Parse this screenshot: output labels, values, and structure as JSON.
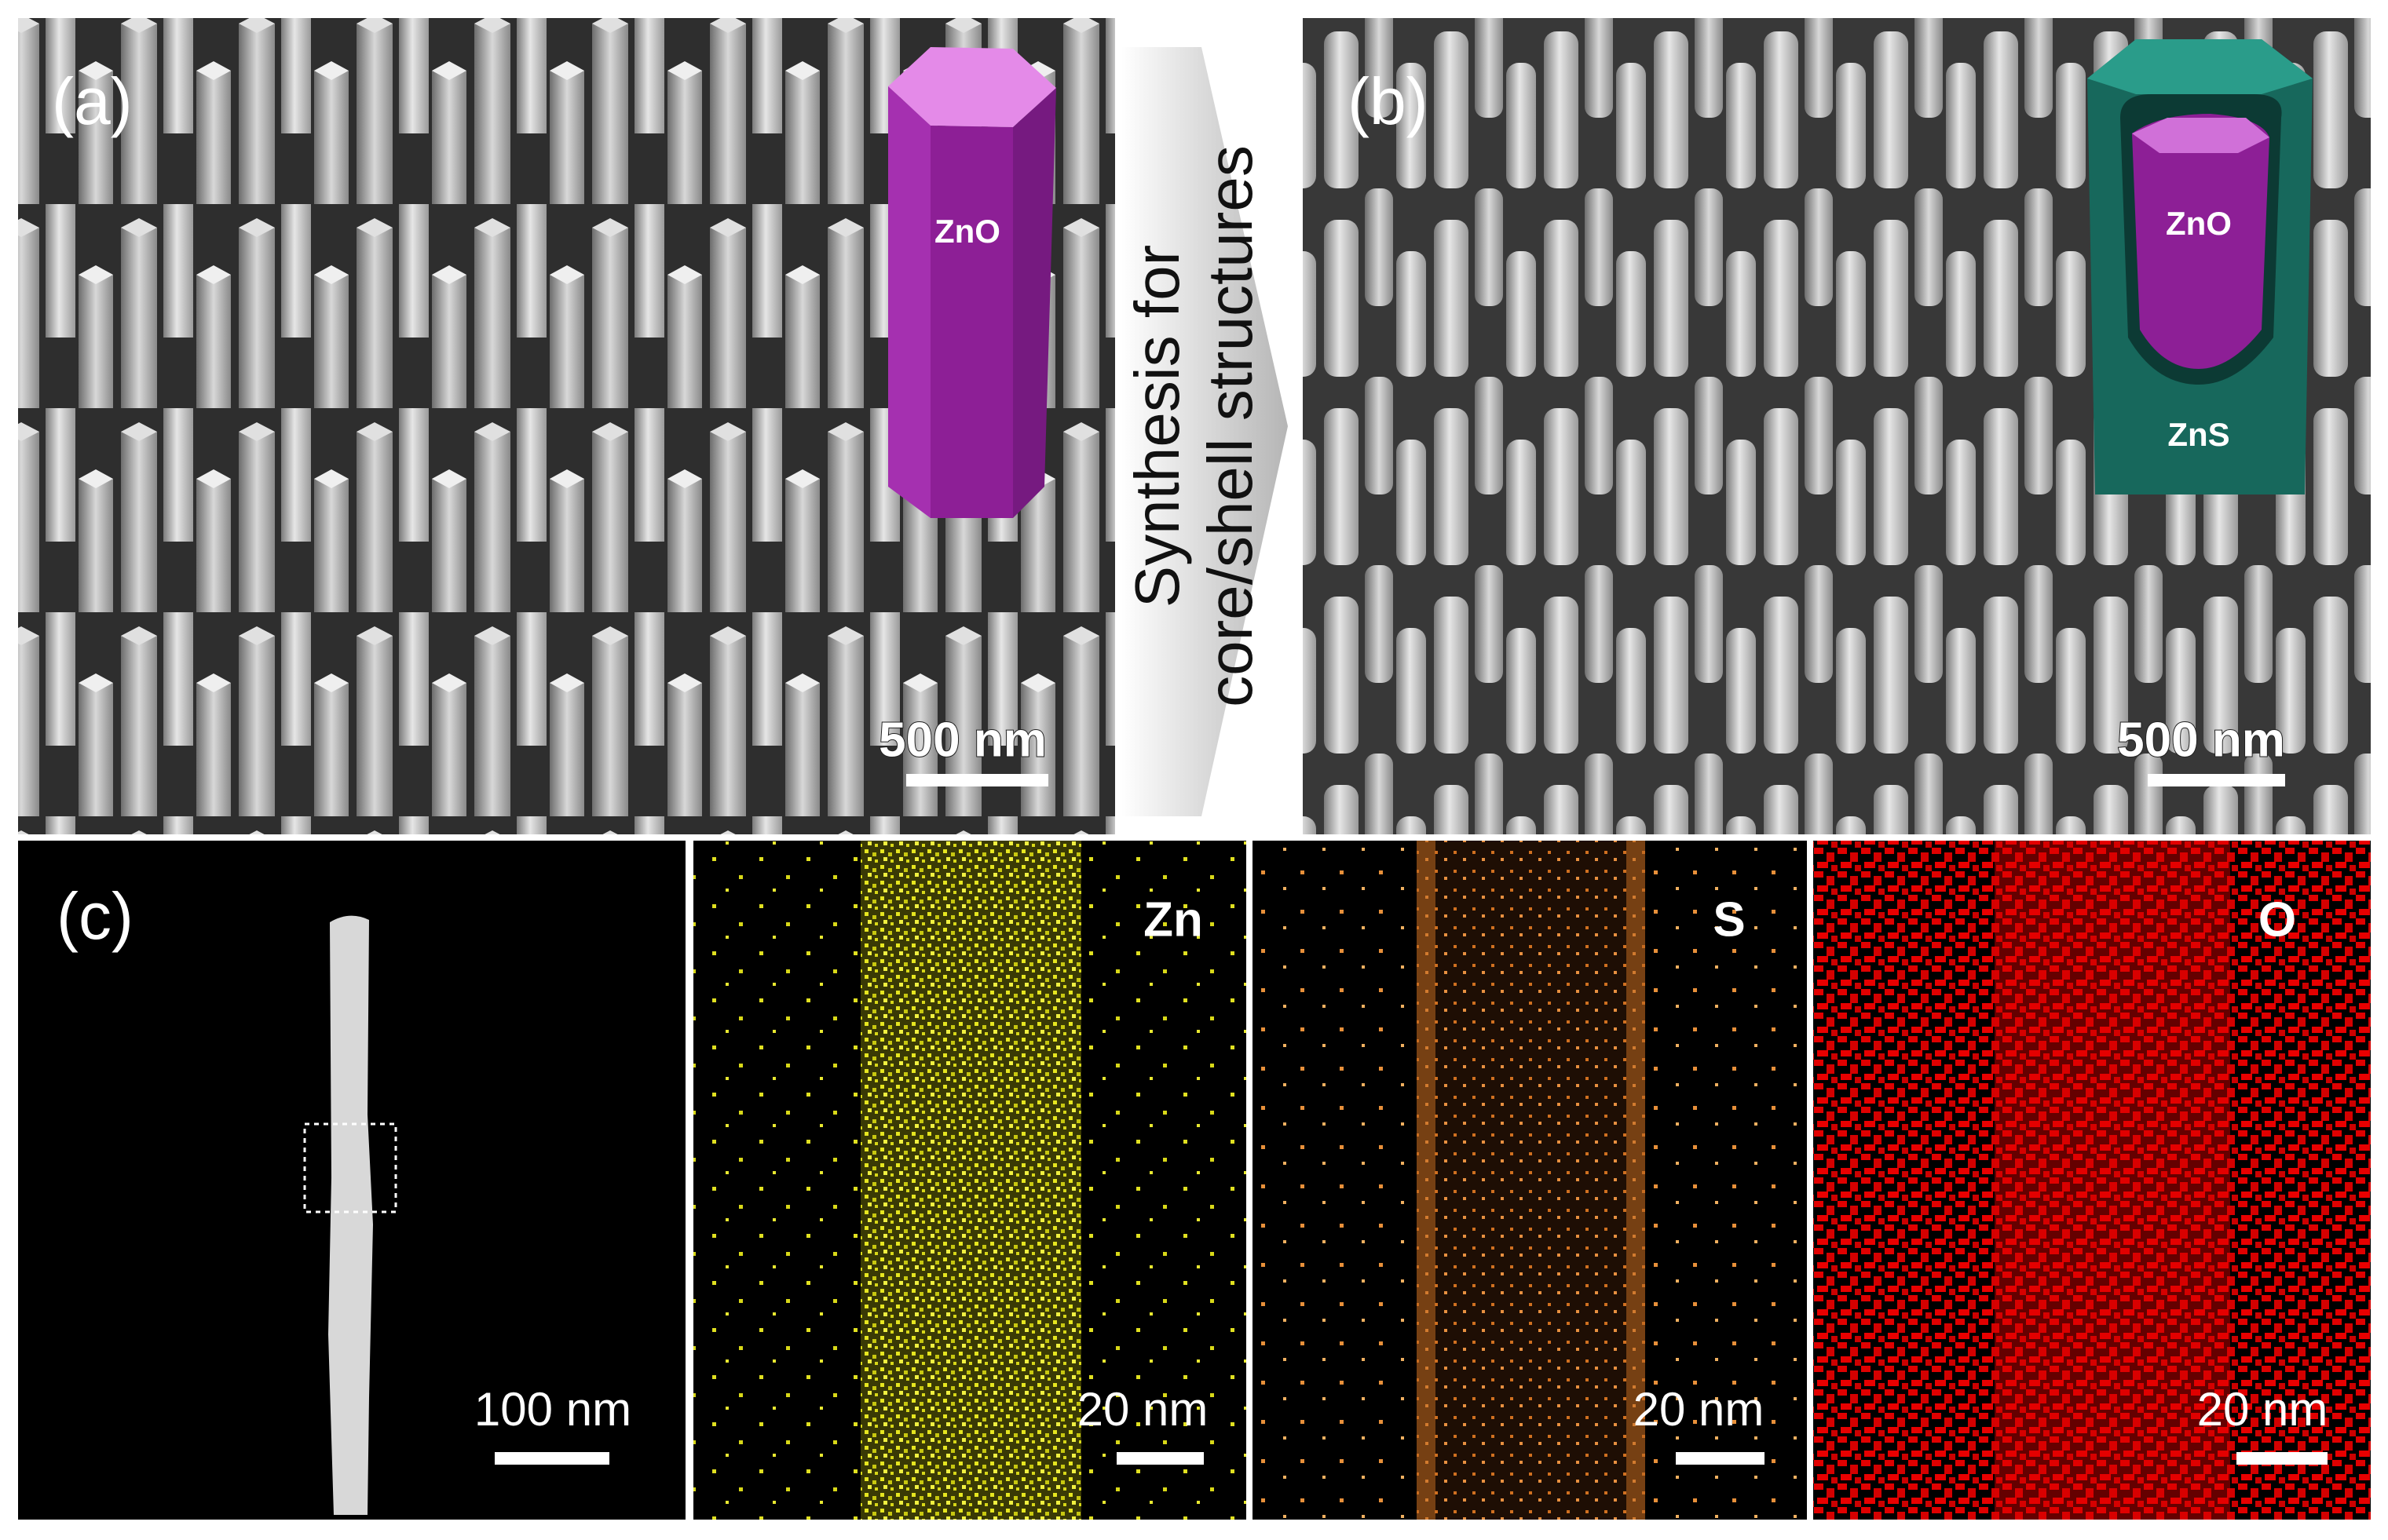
{
  "panel_a": {
    "label": "(a)",
    "inset_label": "ZnO",
    "scale_bar": "500 nm"
  },
  "arrow": {
    "line1": "Synthesis for",
    "line2": "core/shell structures"
  },
  "panel_b": {
    "label": "(b)",
    "core_label": "ZnO",
    "shell_label": "ZnS",
    "scale_bar": "500 nm"
  },
  "panel_c": {
    "label": "(c)",
    "scale_bar": "100 nm"
  },
  "maps": [
    {
      "element": "Zn",
      "scale_bar": "20 nm"
    },
    {
      "element": "S",
      "scale_bar": "20 nm"
    },
    {
      "element": "O",
      "scale_bar": "20 nm"
    }
  ]
}
